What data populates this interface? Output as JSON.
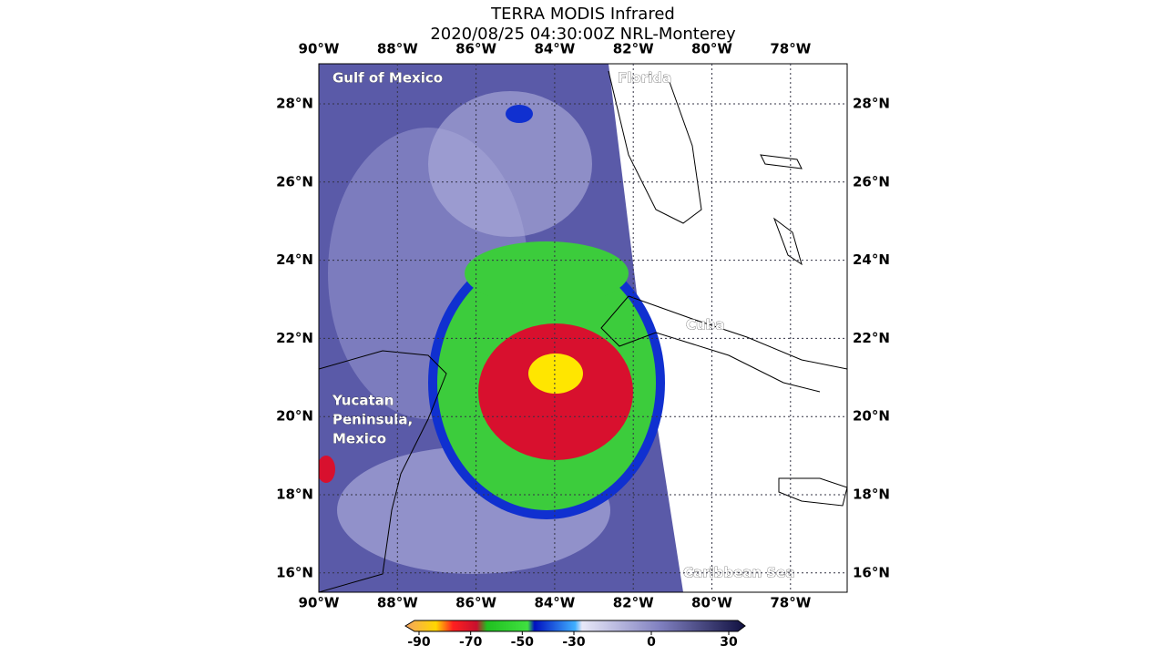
{
  "title": [
    "TERRA MODIS Infrared",
    "2020/08/25 04:30:00Z NRL-Monterey"
  ],
  "longitude_labels": [
    "90°W",
    "88°W",
    "86°W",
    "84°W",
    "82°W",
    "80°W",
    "78°W"
  ],
  "latitude_labels": [
    "28°N",
    "26°N",
    "24°N",
    "22°N",
    "20°N",
    "18°N",
    "16°N"
  ],
  "places": {
    "gulf": "Gulf of Mexico",
    "florida": "Florida",
    "cuba": "Cuba",
    "yucatan": [
      "Yucatan",
      "Peninsula,",
      "Mexico"
    ],
    "caribbean": "Caribbean Sea"
  },
  "colorbar": {
    "ticks": [
      -90,
      -70,
      -50,
      -30,
      0,
      30
    ]
  }
}
